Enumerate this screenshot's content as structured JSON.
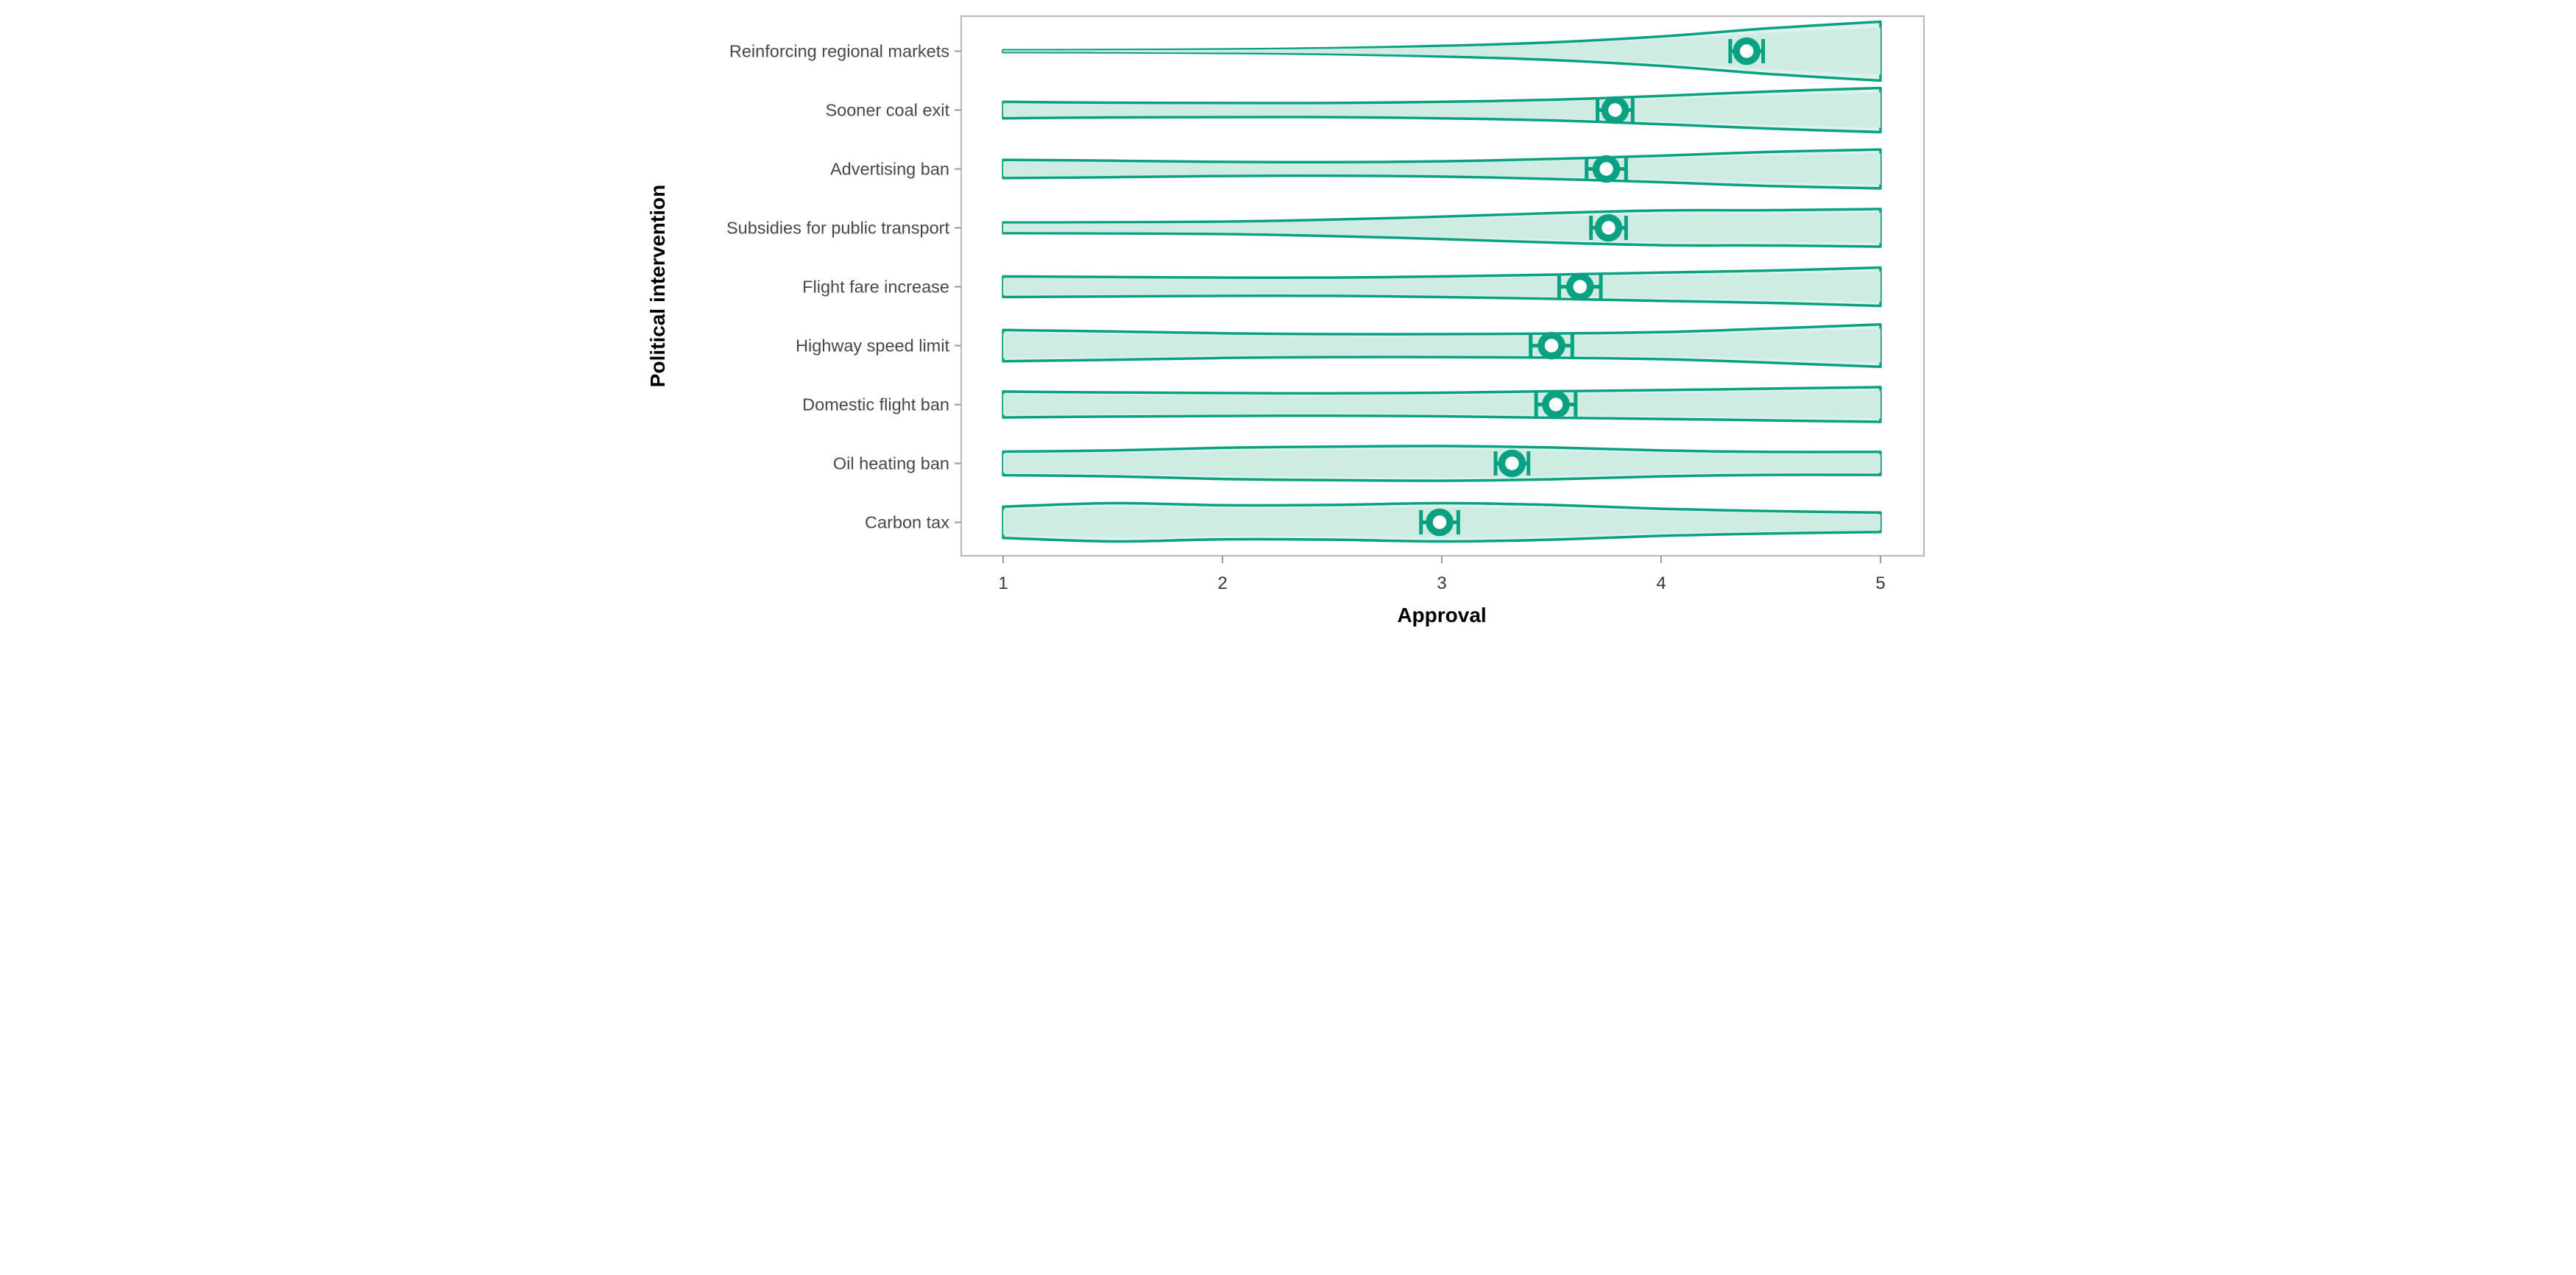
{
  "chart_data": {
    "type": "violin",
    "orientation": "horizontal",
    "title": "",
    "xlabel": "Approval",
    "ylabel": "Political intervention",
    "x_ticks": [
      "1",
      "2",
      "3",
      "4",
      "5"
    ],
    "x_tick_values": [
      1,
      2,
      3,
      4,
      5
    ],
    "xlim": [
      0.81,
      5.2
    ],
    "grid": false,
    "legend": false,
    "categories": [
      "Reinforcing regional markets",
      "Sooner coal exit",
      "Advertising ban",
      "Subsidies for public transport",
      "Flight fare increase",
      "Highway speed limit",
      "Domestic flight ban",
      "Oil heating ban",
      "Carbon tax"
    ],
    "profile_x": [
      1,
      1.5,
      2,
      2.5,
      3,
      3.5,
      4,
      4.5,
      5
    ],
    "series": [
      {
        "label": "Reinforcing regional markets",
        "mean": 4.39,
        "se": 0.075,
        "halfwidth": [
          0.03,
          0.04,
          0.06,
          0.1,
          0.18,
          0.3,
          0.5,
          0.78,
          1.0
        ]
      },
      {
        "label": "Sooner coal exit",
        "mean": 3.79,
        "se": 0.08,
        "halfwidth": [
          0.28,
          0.25,
          0.24,
          0.24,
          0.28,
          0.35,
          0.48,
          0.63,
          0.75
        ]
      },
      {
        "label": "Advertising ban",
        "mean": 3.75,
        "se": 0.09,
        "halfwidth": [
          0.31,
          0.28,
          0.24,
          0.23,
          0.26,
          0.34,
          0.45,
          0.58,
          0.66
        ]
      },
      {
        "label": "Subsidies for public transport",
        "mean": 3.76,
        "se": 0.08,
        "halfwidth": [
          0.18,
          0.19,
          0.21,
          0.28,
          0.38,
          0.5,
          0.59,
          0.6,
          0.64
        ]
      },
      {
        "label": "Flight fare increase",
        "mean": 3.63,
        "se": 0.095,
        "halfwidth": [
          0.35,
          0.33,
          0.31,
          0.31,
          0.35,
          0.41,
          0.48,
          0.55,
          0.65
        ]
      },
      {
        "label": "Highway speed limit",
        "mean": 3.5,
        "se": 0.095,
        "halfwidth": [
          0.53,
          0.48,
          0.42,
          0.39,
          0.39,
          0.41,
          0.46,
          0.58,
          0.72
        ]
      },
      {
        "label": "Domestic flight ban",
        "mean": 3.52,
        "se": 0.09,
        "halfwidth": [
          0.44,
          0.41,
          0.39,
          0.38,
          0.4,
          0.45,
          0.49,
          0.54,
          0.59
        ]
      },
      {
        "label": "Oil heating ban",
        "mean": 3.32,
        "se": 0.075,
        "halfwidth": [
          0.4,
          0.44,
          0.53,
          0.57,
          0.59,
          0.54,
          0.44,
          0.39,
          0.39
        ]
      },
      {
        "label": "Carbon tax",
        "mean": 2.99,
        "se": 0.085,
        "halfwidth": [
          0.53,
          0.65,
          0.58,
          0.59,
          0.65,
          0.59,
          0.46,
          0.38,
          0.33
        ]
      }
    ],
    "colors": {
      "violin_stroke": "#0aa183",
      "violin_fill_outer": "#dcf3ec",
      "violin_fill_core": "#cfece2",
      "point_ring": "#0aa183",
      "point_center": "#ffffff",
      "errorbar": "#0aa183",
      "panel_border": "#b9b9b9",
      "axis_tick": "#9a9a9a",
      "tick_label": "#383838",
      "category_label": "#474747",
      "axis_title": "#000000",
      "background": "#ffffff"
    }
  }
}
